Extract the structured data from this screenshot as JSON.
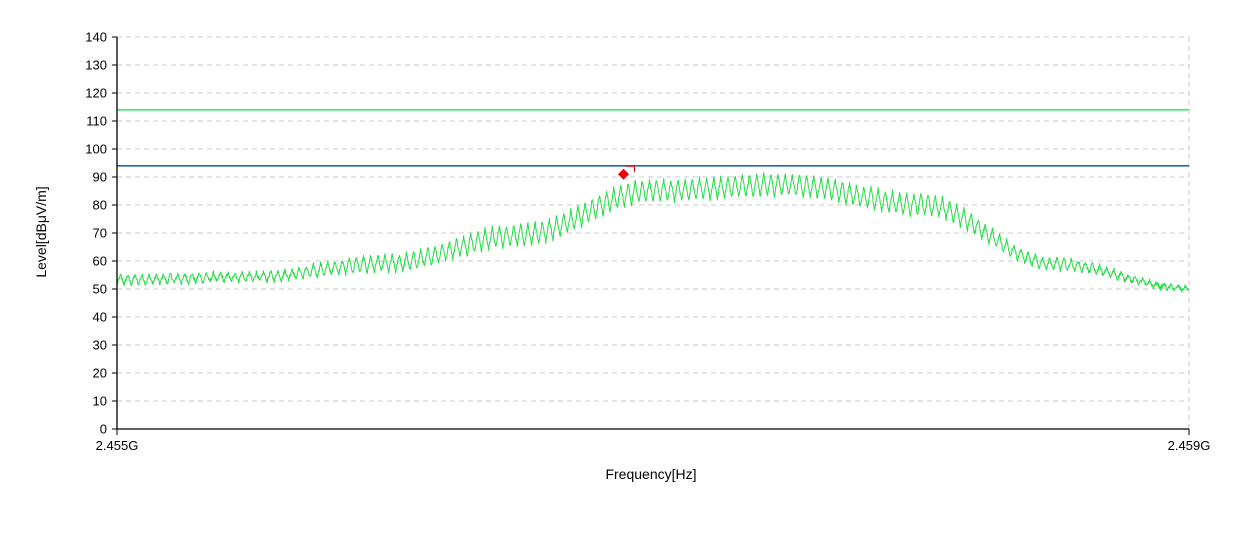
{
  "chart_data": {
    "type": "line",
    "title": "",
    "xlabel": "Frequency[Hz]",
    "ylabel": "Level[dBμV/m]",
    "xlim": [
      2.455,
      2.459
    ],
    "x_unit": "GHz",
    "x_tick_labels": [
      "2.455G",
      "2.459G"
    ],
    "ylim": [
      0,
      140
    ],
    "y_ticks": [
      0,
      10,
      20,
      30,
      40,
      50,
      60,
      70,
      80,
      90,
      100,
      110,
      120,
      130,
      140
    ],
    "grid": true,
    "limit_lines": [
      {
        "value": 114,
        "color": "#33ee77"
      },
      {
        "value": 94,
        "color": "#2266bb"
      }
    ],
    "series": [
      {
        "color": "#22dd44",
        "x": [
          2.455,
          2.4555,
          2.456,
          2.4565,
          2.457,
          2.4575,
          2.458,
          2.4585,
          2.459
        ],
        "envelope_low": [
          51,
          52,
          55,
          64,
          80,
          82,
          75,
          56,
          49
        ],
        "envelope_high": [
          55,
          56,
          62,
          73,
          89,
          91,
          84,
          61,
          51
        ]
      }
    ],
    "marker": {
      "x": 2.45689,
      "y": 91,
      "shape": "diamond",
      "color": "#e8000b"
    }
  }
}
